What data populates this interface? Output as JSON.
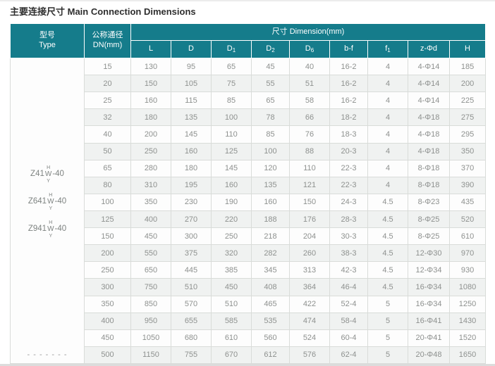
{
  "title": "主要连接尺寸 Main Connection Dimensions",
  "colors": {
    "header_teal": "#157c8b",
    "stripe": "#f0f2f1",
    "border": "#d9dcd9",
    "body_text": "#8e918f"
  },
  "header": {
    "type_cn": "型号",
    "type_en": "Type",
    "dn_cn": "公称通径",
    "dn_en": "DN(mm)",
    "dimension": "尺寸 Dimension(mm)",
    "columns": [
      {
        "label": "L"
      },
      {
        "label": "D"
      },
      {
        "label": "D",
        "sub": "1"
      },
      {
        "label": "D",
        "sub": "2"
      },
      {
        "label": "D",
        "sub": "6"
      },
      {
        "label": "b-f"
      },
      {
        "label": "f",
        "sub": "1"
      },
      {
        "label": "z-Φd"
      },
      {
        "label": "H"
      }
    ]
  },
  "types": {
    "models": [
      {
        "prefix": "Z41",
        "top": "H",
        "mid": "W",
        "bottom": "Y",
        "suffix": "-40"
      },
      {
        "prefix": "Z641",
        "top": "H",
        "mid": "W",
        "bottom": "Y",
        "suffix": "-40"
      },
      {
        "prefix": "Z941",
        "top": "H",
        "mid": "W",
        "bottom": "Y",
        "suffix": "-40"
      }
    ],
    "dashes": "- - - - - - -"
  },
  "chart_data": {
    "type": "table",
    "title": "主要连接尺寸 Main Connection Dimensions",
    "columns": [
      "DN(mm)",
      "L",
      "D",
      "D1",
      "D2",
      "D6",
      "b-f",
      "f1",
      "z-Φd",
      "H"
    ],
    "rows": [
      [
        "15",
        "130",
        "95",
        "65",
        "45",
        "40",
        "16-2",
        "4",
        "4-Φ14",
        "185"
      ],
      [
        "20",
        "150",
        "105",
        "75",
        "55",
        "51",
        "16-2",
        "4",
        "4-Φ14",
        "200"
      ],
      [
        "25",
        "160",
        "115",
        "85",
        "65",
        "58",
        "16-2",
        "4",
        "4-Φ14",
        "225"
      ],
      [
        "32",
        "180",
        "135",
        "100",
        "78",
        "66",
        "18-2",
        "4",
        "4-Φ18",
        "275"
      ],
      [
        "40",
        "200",
        "145",
        "110",
        "85",
        "76",
        "18-3",
        "4",
        "4-Φ18",
        "295"
      ],
      [
        "50",
        "250",
        "160",
        "125",
        "100",
        "88",
        "20-3",
        "4",
        "4-Φ18",
        "350"
      ],
      [
        "65",
        "280",
        "180",
        "145",
        "120",
        "110",
        "22-3",
        "4",
        "8-Φ18",
        "370"
      ],
      [
        "80",
        "310",
        "195",
        "160",
        "135",
        "121",
        "22-3",
        "4",
        "8-Φ18",
        "390"
      ],
      [
        "100",
        "350",
        "230",
        "190",
        "160",
        "150",
        "24-3",
        "4.5",
        "8-Φ23",
        "435"
      ],
      [
        "125",
        "400",
        "270",
        "220",
        "188",
        "176",
        "28-3",
        "4.5",
        "8-Φ25",
        "520"
      ],
      [
        "150",
        "450",
        "300",
        "250",
        "218",
        "204",
        "30-3",
        "4.5",
        "8-Φ25",
        "610"
      ],
      [
        "200",
        "550",
        "375",
        "320",
        "282",
        "260",
        "38-3",
        "4.5",
        "12-Φ30",
        "970"
      ],
      [
        "250",
        "650",
        "445",
        "385",
        "345",
        "313",
        "42-3",
        "4.5",
        "12-Φ34",
        "930"
      ],
      [
        "300",
        "750",
        "510",
        "450",
        "408",
        "364",
        "46-4",
        "4.5",
        "16-Φ34",
        "1080"
      ],
      [
        "350",
        "850",
        "570",
        "510",
        "465",
        "422",
        "52-4",
        "5",
        "16-Φ34",
        "1250"
      ],
      [
        "400",
        "950",
        "655",
        "585",
        "535",
        "474",
        "58-4",
        "5",
        "16-Φ41",
        "1430"
      ],
      [
        "450",
        "1050",
        "680",
        "610",
        "560",
        "524",
        "60-4",
        "5",
        "20-Φ41",
        "1520"
      ],
      [
        "500",
        "1150",
        "755",
        "670",
        "612",
        "576",
        "62-4",
        "5",
        "20-Φ48",
        "1650"
      ]
    ]
  }
}
